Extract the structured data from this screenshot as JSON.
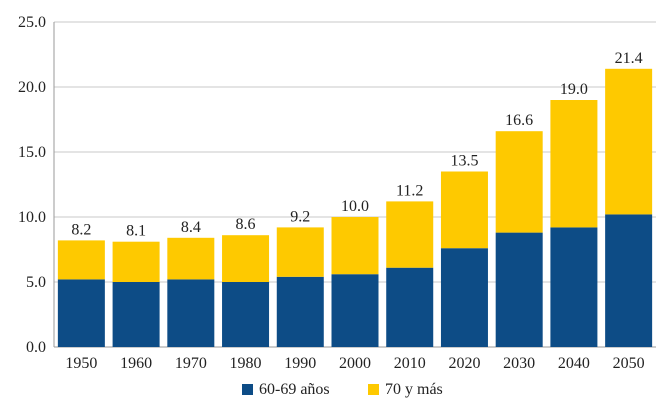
{
  "chart_data": {
    "type": "bar",
    "stacked": true,
    "categories": [
      "1950",
      "1960",
      "1970",
      "1980",
      "1990",
      "2000",
      "2010",
      "2020",
      "2030",
      "2040",
      "2050"
    ],
    "series": [
      {
        "name": "60-69 años",
        "color": "#0d4c86",
        "values": [
          5.2,
          5.0,
          5.2,
          5.0,
          5.4,
          5.6,
          6.1,
          7.6,
          8.8,
          9.2,
          10.2
        ]
      },
      {
        "name": "70 y más",
        "color": "#fec900",
        "values": [
          3.0,
          3.1,
          3.2,
          3.6,
          3.8,
          4.4,
          5.1,
          5.9,
          7.8,
          9.8,
          11.2
        ]
      }
    ],
    "totals": [
      "8.2",
      "8.1",
      "8.4",
      "8.6",
      "9.2",
      "10.0",
      "11.2",
      "13.5",
      "16.6",
      "19.0",
      "21.4"
    ],
    "ylim": [
      0,
      25
    ],
    "yticks": [
      "0.0",
      "5.0",
      "10.0",
      "15.0",
      "20.0",
      "25.0"
    ],
    "grid": true,
    "legend_position": "bottom",
    "title": "",
    "xlabel": "",
    "ylabel": ""
  }
}
